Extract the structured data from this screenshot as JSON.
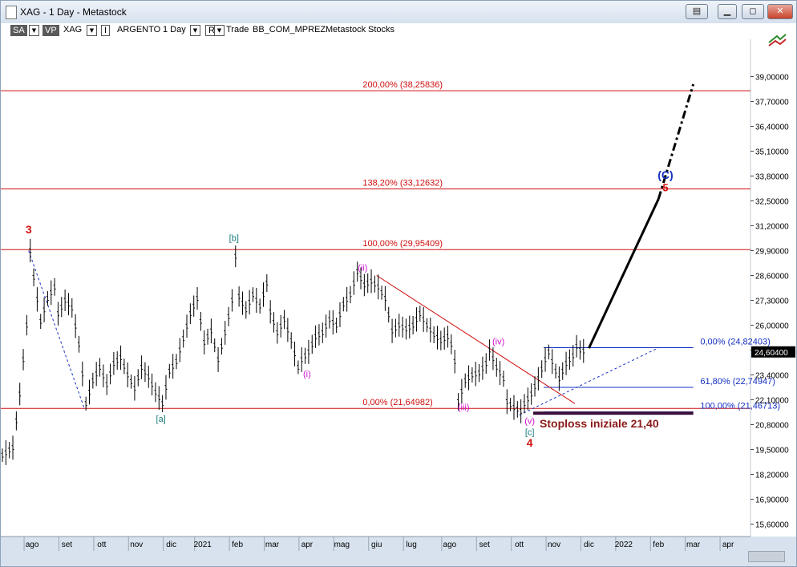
{
  "window": {
    "title": "XAG - 1 Day - Metastock",
    "buttons": [
      "▤",
      "▁",
      "◻",
      "✕"
    ]
  },
  "toolbar": {
    "sa": "SA",
    "vp": "VP",
    "symbol": "XAG",
    "indicator_box": "I",
    "name": "ARGENTO",
    "period": "1 Day",
    "r_box": "R",
    "mode": "Trade",
    "sector": "BB_COM_MPREZ",
    "source": "Metastock",
    "category": "Stocks",
    "dropdown_glyph": "▼"
  },
  "chart_data": {
    "type": "line",
    "title": "",
    "xlabel": "",
    "ylabel": "",
    "ylim": [
      14.95,
      40.95
    ],
    "price_axis_labels": [
      "39,00000",
      "37,70000",
      "36,40000",
      "35,10000",
      "33,80000",
      "32,50000",
      "31,20000",
      "29,90000",
      "28,60000",
      "27,30000",
      "26,00000",
      "24,70000",
      "23,40000",
      "22,10000",
      "20,80000",
      "19,50000",
      "18,20000",
      "16,90000",
      "15,60000"
    ],
    "last_price_label": "24,60400",
    "last_price": 24.604,
    "time_axis_labels": [
      "ago",
      "set",
      "ott",
      "nov",
      "dic",
      "2021",
      "feb",
      "mar",
      "apr",
      "mag",
      "giu",
      "lug",
      "ago",
      "set",
      "ott",
      "nov",
      "dic",
      "2022",
      "feb",
      "mar",
      "apr"
    ],
    "time_axis_index": [
      9,
      19,
      29,
      39,
      49,
      58,
      68,
      78,
      88,
      98,
      108,
      118,
      129,
      139,
      149,
      159,
      169,
      179,
      189,
      199,
      209
    ],
    "price_series": [
      [
        0,
        19.2
      ],
      [
        3,
        19.6
      ],
      [
        5,
        22.4
      ],
      [
        7,
        26.0
      ],
      [
        8,
        29.9
      ],
      [
        9,
        28.5
      ],
      [
        11,
        26.2
      ],
      [
        13,
        27.4
      ],
      [
        15,
        28.0
      ],
      [
        16,
        26.6
      ],
      [
        18,
        27.3
      ],
      [
        20,
        26.9
      ],
      [
        22,
        25.0
      ],
      [
        24,
        21.9
      ],
      [
        26,
        23.1
      ],
      [
        28,
        23.8
      ],
      [
        30,
        22.9
      ],
      [
        32,
        24.0
      ],
      [
        34,
        24.3
      ],
      [
        36,
        23.4
      ],
      [
        38,
        22.7
      ],
      [
        40,
        23.8
      ],
      [
        42,
        23.3
      ],
      [
        44,
        22.5
      ],
      [
        46,
        21.9
      ],
      [
        48,
        23.6
      ],
      [
        50,
        24.1
      ],
      [
        52,
        25.3
      ],
      [
        54,
        26.6
      ],
      [
        56,
        27.4
      ],
      [
        57,
        26.2
      ],
      [
        58,
        25.1
      ],
      [
        60,
        25.7
      ],
      [
        62,
        24.2
      ],
      [
        64,
        25.6
      ],
      [
        66,
        27.3
      ],
      [
        67,
        29.6
      ],
      [
        68,
        27.5
      ],
      [
        70,
        26.8
      ],
      [
        72,
        27.6
      ],
      [
        74,
        27.0
      ],
      [
        76,
        28.2
      ],
      [
        77,
        26.7
      ],
      [
        79,
        25.6
      ],
      [
        81,
        26.3
      ],
      [
        83,
        25.2
      ],
      [
        85,
        23.8
      ],
      [
        86,
        24.2
      ],
      [
        88,
        24.6
      ],
      [
        90,
        25.4
      ],
      [
        92,
        25.6
      ],
      [
        94,
        26.3
      ],
      [
        96,
        26.0
      ],
      [
        98,
        27.1
      ],
      [
        100,
        27.6
      ],
      [
        102,
        28.8
      ],
      [
        104,
        28.1
      ],
      [
        106,
        28.3
      ],
      [
        108,
        28.0
      ],
      [
        110,
        27.4
      ],
      [
        112,
        25.7
      ],
      [
        114,
        26.0
      ],
      [
        116,
        25.8
      ],
      [
        118,
        26.0
      ],
      [
        120,
        26.6
      ],
      [
        122,
        26.0
      ],
      [
        124,
        25.5
      ],
      [
        126,
        25.2
      ],
      [
        128,
        25.4
      ],
      [
        129,
        25.0
      ],
      [
        130,
        24.1
      ],
      [
        131,
        22.0
      ],
      [
        133,
        23.1
      ],
      [
        135,
        23.4
      ],
      [
        137,
        23.5
      ],
      [
        139,
        24.0
      ],
      [
        140,
        24.7
      ],
      [
        142,
        23.8
      ],
      [
        144,
        23.2
      ],
      [
        145,
        22.0
      ],
      [
        147,
        21.7
      ],
      [
        149,
        21.5
      ],
      [
        150,
        21.9
      ],
      [
        152,
        22.4
      ],
      [
        154,
        23.2
      ],
      [
        156,
        24.2
      ],
      [
        157,
        24.6
      ],
      [
        159,
        23.6
      ],
      [
        160,
        23.2
      ],
      [
        162,
        24.0
      ],
      [
        164,
        24.4
      ],
      [
        165,
        24.9
      ],
      [
        166,
        24.7
      ],
      [
        168,
        24.604
      ]
    ],
    "projection": {
      "solid": [
        [
          169,
          24.8
        ],
        [
          189,
          32.6
        ]
      ],
      "dashdot": [
        [
          189,
          32.6
        ],
        [
          199,
          38.6
        ]
      ]
    },
    "downtrend_line": [
      [
        108,
        28.6
      ],
      [
        165,
        21.9
      ]
    ],
    "dashed_lines": [
      [
        [
          8,
          29.9
        ],
        [
          24,
          21.65
        ]
      ],
      [
        [
          149,
          21.3
        ],
        [
          189,
          24.82
        ]
      ]
    ],
    "fib_lines": [
      {
        "label": "200,00% (38,25836)",
        "value": 38.25836,
        "from": 0,
        "to": 229,
        "color": "#d01010",
        "label_color": "#d01010",
        "label_x": 104
      },
      {
        "label": "138,20% (33,12632)",
        "value": 33.12632,
        "from": 0,
        "to": 229,
        "color": "#d01010",
        "label_color": "#d01010",
        "label_x": 104
      },
      {
        "label": "100,00% (29,95409)",
        "value": 29.95409,
        "from": 0,
        "to": 229,
        "color": "#d01010",
        "label_color": "#d01010",
        "label_x": 104
      },
      {
        "label": "0,00% (21,64982)",
        "value": 21.64982,
        "from": 0,
        "to": 229,
        "color": "#d01010",
        "label_color": "#d01010",
        "label_x": 104
      },
      {
        "label": "0,00% (24,82403)",
        "value": 24.82403,
        "from": 156,
        "to": 199,
        "color": "#1530c0",
        "label_color": "#1530c0",
        "label_x": 201
      },
      {
        "label": "61,80% (22,74947)",
        "value": 22.74947,
        "from": 156,
        "to": 199,
        "color": "#1530c0",
        "label_color": "#1530c0",
        "label_x": 201
      },
      {
        "label": "100,00% (21,46713)",
        "value": 21.46713,
        "from": 156,
        "to": 199,
        "color": "#1530c0",
        "label_color": "#1530c0",
        "label_x": 201
      }
    ],
    "stoploss": {
      "label": "Stoploss iniziale 21,40",
      "value": 21.4,
      "from": 153,
      "to": 199
    },
    "wave_labels": [
      {
        "text": "3",
        "x": 8,
        "y": 30.8,
        "color": "#d01010",
        "bold": true,
        "size": 14
      },
      {
        "text": "[b]",
        "x": 67,
        "y": 30.4,
        "color": "#1a7a7a",
        "bold": false,
        "size": 11
      },
      {
        "text": "(ii)",
        "x": 104,
        "y": 28.85,
        "color": "#cc11cc",
        "bold": false,
        "size": 11
      },
      {
        "text": "(i)",
        "x": 88,
        "y": 23.3,
        "color": "#cc11cc",
        "bold": false,
        "size": 11
      },
      {
        "text": "[a]",
        "x": 46,
        "y": 20.95,
        "color": "#1a7a7a",
        "bold": false,
        "size": 11
      },
      {
        "text": "(iii)",
        "x": 133,
        "y": 21.55,
        "color": "#cc11cc",
        "bold": false,
        "size": 11
      },
      {
        "text": "(iv)",
        "x": 143,
        "y": 25.0,
        "color": "#cc11cc",
        "bold": false,
        "size": 11
      },
      {
        "text": "(v)",
        "x": 152,
        "y": 20.85,
        "color": "#cc11cc",
        "bold": false,
        "size": 11
      },
      {
        "text": "[c]",
        "x": 152,
        "y": 20.25,
        "color": "#1a7a7a",
        "bold": false,
        "size": 11
      },
      {
        "text": "4",
        "x": 152,
        "y": 19.65,
        "color": "#d01010",
        "bold": true,
        "size": 14
      },
      {
        "text": "(C)",
        "x": 191,
        "y": 33.65,
        "color": "#1530c0",
        "bold": true,
        "size": 14
      },
      {
        "text": "5",
        "x": 191,
        "y": 33.0,
        "color": "#d01010",
        "bold": true,
        "size": 13
      }
    ]
  }
}
